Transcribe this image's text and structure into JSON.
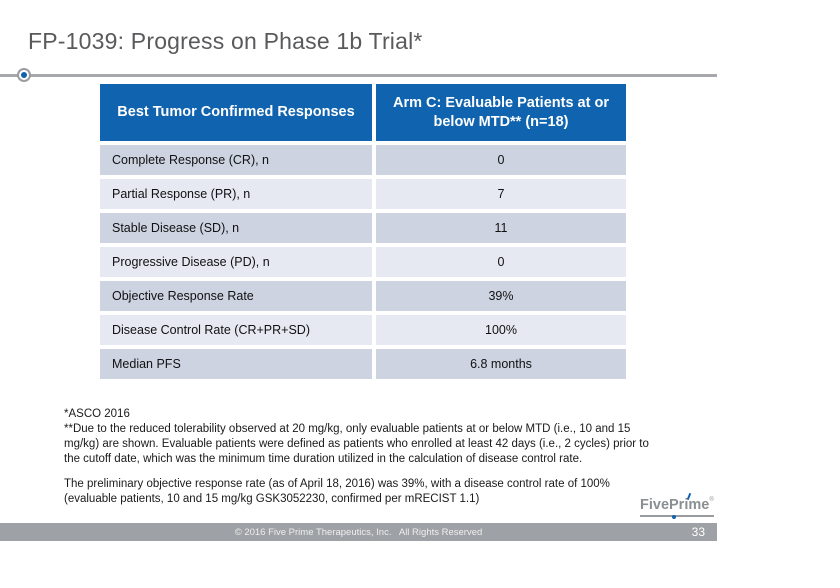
{
  "slide": {
    "title": "FP-1039: Progress on Phase 1b Trial*"
  },
  "table": {
    "header": [
      "Best Tumor Confirmed Responses",
      "Arm C: Evaluable Patients at or below MTD** (n=18)"
    ],
    "rows": [
      {
        "label": "Complete Response (CR), n",
        "value": "0"
      },
      {
        "label": "Partial Response (PR), n",
        "value": "7"
      },
      {
        "label": "Stable Disease (SD), n",
        "value": "11"
      },
      {
        "label": "Progressive Disease (PD), n",
        "value": "0"
      },
      {
        "label": "Objective Response Rate",
        "value": "39%"
      },
      {
        "label": "Disease Control Rate (CR+PR+SD)",
        "value": "100%"
      },
      {
        "label": "Median PFS",
        "value": "6.8 months"
      }
    ]
  },
  "footnotes": {
    "asco": "*ASCO 2016",
    "mtd_note": "**Due to the reduced tolerability observed at 20 mg/kg, only evaluable patients at or below MTD (i.e., 10 and 15 mg/kg) are shown. Evaluable patients were defined as patients who enrolled at least 42 days (i.e., 2 cycles) prior to the cutoff date, which was the minimum time duration utilized in the calculation of disease control rate."
  },
  "summary": "The preliminary objective response rate (as of April 18, 2016) was 39%, with a disease control rate of 100% (evaluable patients, 10 and 15 mg/kg GSK3052230, confirmed per mRECIST 1.1)",
  "logo": {
    "text": "FivePrime",
    "reg_mark": "®"
  },
  "footer": {
    "copyright": "© 2016 Five Prime Therapeutics, Inc.   All Rights Reserved",
    "page_number": "33"
  },
  "colors": {
    "header_blue": "#1063ae",
    "row_dark": "#cdd3e1",
    "row_light": "#e6e9f2",
    "footer_gray": "#9ea1a5",
    "title_gray": "#595a5c",
    "rule_gray": "#a7a8ab"
  }
}
